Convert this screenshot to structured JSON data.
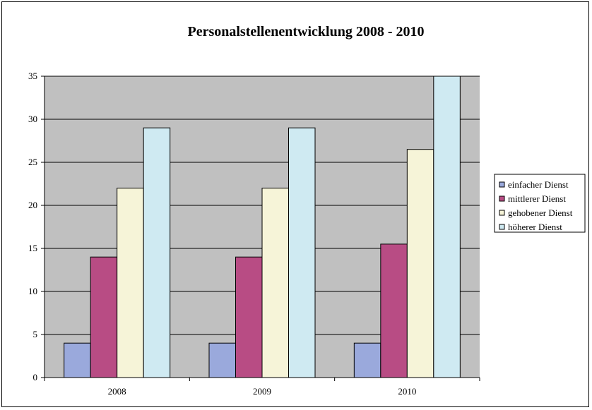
{
  "colors": {
    "plot_background": "#c0c0c0",
    "gridline": "#000000",
    "series": [
      "#9aa9dc",
      "#b84c84",
      "#f6f4d8",
      "#cfeaf2"
    ]
  },
  "chart_data": {
    "type": "bar",
    "title": "Personalstellenentwicklung 2008 - 2010",
    "xlabel": "",
    "ylabel": "",
    "categories": [
      "2008",
      "2009",
      "2010"
    ],
    "series": [
      {
        "name": "einfacher Dienst",
        "values": [
          4,
          4,
          4
        ]
      },
      {
        "name": "mittlerer Dienst",
        "values": [
          14,
          14,
          15.5
        ]
      },
      {
        "name": "gehobener Dienst",
        "values": [
          22,
          22,
          26.5
        ]
      },
      {
        "name": "höherer Dienst",
        "values": [
          29,
          29,
          35
        ]
      }
    ],
    "ylim": [
      0,
      35
    ],
    "yticks": [
      "0",
      "5",
      "10",
      "15",
      "20",
      "25",
      "30",
      "35"
    ],
    "grid": true,
    "legend_position": "right"
  }
}
